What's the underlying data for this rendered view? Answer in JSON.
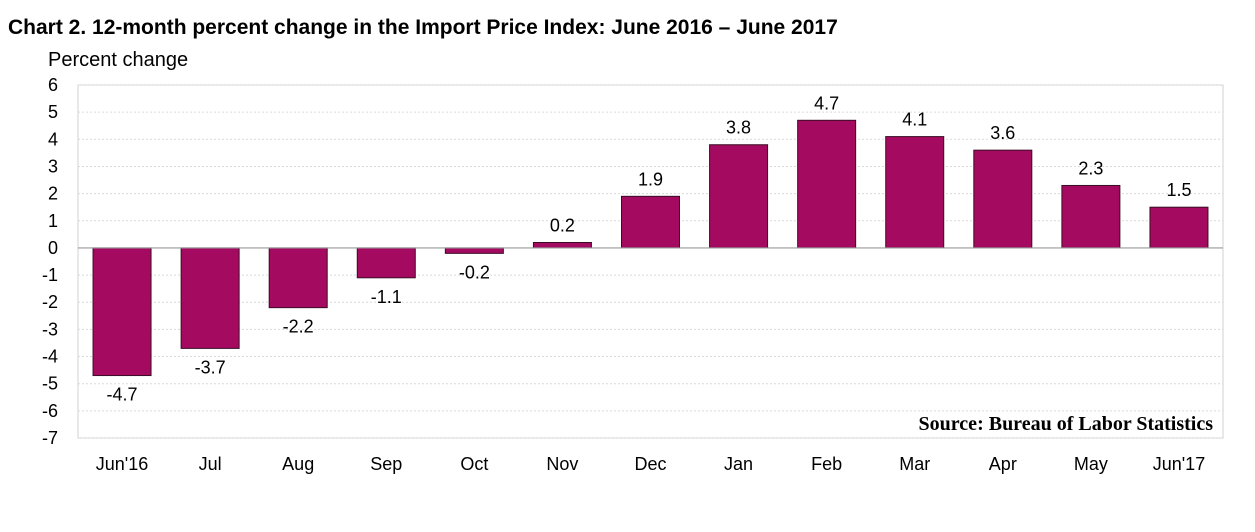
{
  "chart_data": {
    "type": "bar",
    "title": "Chart 2. 12-month percent change in the Import Price Index: June 2016 – June 2017",
    "ylabel": "Percent change",
    "xlabel": "",
    "categories": [
      "Jun'16",
      "Jul",
      "Aug",
      "Sep",
      "Oct",
      "Nov",
      "Dec",
      "Jan",
      "Feb",
      "Mar",
      "Apr",
      "May",
      "Jun'17"
    ],
    "values": [
      -4.7,
      -3.7,
      -2.2,
      -1.1,
      -0.2,
      0.2,
      1.9,
      3.8,
      4.7,
      4.1,
      3.6,
      2.3,
      1.5
    ],
    "value_labels": [
      "-4.7",
      "-3.7",
      "-2.2",
      "-1.1",
      "-0.2",
      "0.2",
      "1.9",
      "3.8",
      "4.7",
      "4.1",
      "3.6",
      "2.3",
      "1.5"
    ],
    "ylim": [
      -7,
      6
    ],
    "yticks": [
      6,
      5,
      4,
      3,
      2,
      1,
      0,
      -1,
      -2,
      -3,
      -4,
      -5,
      -6,
      -7
    ],
    "ytick_labels": [
      "6",
      "5",
      "4",
      "3",
      "2",
      "1",
      "0",
      "-1",
      "-2",
      "-3",
      "-4",
      "-5",
      "-6",
      "-7"
    ],
    "grid": true,
    "bar_color": "#a50a61",
    "annotation": "Source: Bureau of Labor Statistics"
  }
}
